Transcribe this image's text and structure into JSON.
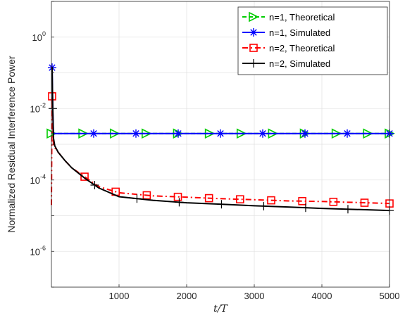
{
  "chart_data": {
    "type": "line",
    "xlabel": "t/T",
    "ylabel": "Normalized Residual Interference Power",
    "xlim": [
      0,
      5000
    ],
    "ylim": [
      1e-07,
      10
    ],
    "yscale": "log",
    "grid": true,
    "legend_position": "top-right",
    "x_ticks": [
      1000,
      2000,
      3000,
      4000,
      5000
    ],
    "x_tick_labels": [
      "1000",
      "2000",
      "3000",
      "4000",
      "5000"
    ],
    "y_ticks": [
      {
        "value": 1e-06,
        "base": "10",
        "exp": "-6"
      },
      {
        "value": 0.0001,
        "base": "10",
        "exp": "-4"
      },
      {
        "value": 0.01,
        "base": "10",
        "exp": "-2"
      },
      {
        "value": 1,
        "base": "10",
        "exp": "0"
      }
    ],
    "series": [
      {
        "name": "n=1, Theoretical",
        "color": "#00cc00",
        "dash": "6,3",
        "marker": "triangle-right",
        "x": [
          0,
          20,
          30,
          50,
          100,
          200,
          500,
          1000,
          2000,
          3000,
          4000,
          5000
        ],
        "y": [
          0.002,
          0.002,
          0.002,
          0.002,
          0.002,
          0.002,
          0.002,
          0.002,
          0.002,
          0.002,
          0.002,
          0.002
        ],
        "marker_x": [
          0,
          470,
          935,
          1405,
          1870,
          2340,
          2810,
          3275,
          3745,
          4215,
          4680,
          5000
        ]
      },
      {
        "name": "n=1, Simulated",
        "color": "#0000ff",
        "dash": "",
        "marker": "asterisk",
        "x": [
          0,
          10,
          20,
          30,
          50,
          100,
          500,
          1000,
          2000,
          3000,
          4000,
          5000
        ],
        "y": [
          0.14,
          0.14,
          0.01,
          0.002,
          0.002,
          0.002,
          0.002,
          0.002,
          0.002,
          0.002,
          0.002,
          0.002
        ],
        "marker_x": [
          10,
          625,
          1250,
          1875,
          2500,
          3125,
          3750,
          4375,
          5000
        ]
      },
      {
        "name": "n=2, Theoretical",
        "color": "#ff0000",
        "dash": "8,4,2,4",
        "marker": "square",
        "x": [
          0,
          10,
          20,
          30,
          50,
          100,
          200,
          300,
          500,
          700,
          1000,
          1500,
          2000,
          2500,
          3000,
          3500,
          4000,
          4500,
          5000
        ],
        "y": [
          2e-05,
          0.022,
          0.004,
          0.001,
          0.0008,
          0.0006,
          0.00035,
          0.00022,
          0.00012,
          6.5e-05,
          4.4e-05,
          3.6e-05,
          3.3e-05,
          3e-05,
          2.8e-05,
          2.6e-05,
          2.5e-05,
          2.35e-05,
          2.2e-05
        ],
        "marker_x": [
          10,
          490,
          950,
          1410,
          1870,
          2330,
          2790,
          3250,
          3710,
          4170,
          4630,
          5000
        ]
      },
      {
        "name": "n=2, Simulated",
        "color": "#000000",
        "dash": "",
        "marker": "plus",
        "x": [
          0,
          10,
          20,
          30,
          50,
          100,
          200,
          300,
          500,
          700,
          1000,
          1500,
          2000,
          2500,
          3000,
          3500,
          4000,
          4500,
          5000
        ],
        "y": [
          0.14,
          0.14,
          0.01,
          0.0015,
          0.0009,
          0.0006,
          0.00035,
          0.00022,
          0.00011,
          6e-05,
          3.4e-05,
          2.7e-05,
          2.3e-05,
          2.1e-05,
          1.9e-05,
          1.75e-05,
          1.6e-05,
          1.5e-05,
          1.4e-05
        ],
        "marker_x": [
          20,
          640,
          1265,
          1890,
          2515,
          3140,
          3760,
          4385,
          5000
        ]
      }
    ]
  }
}
